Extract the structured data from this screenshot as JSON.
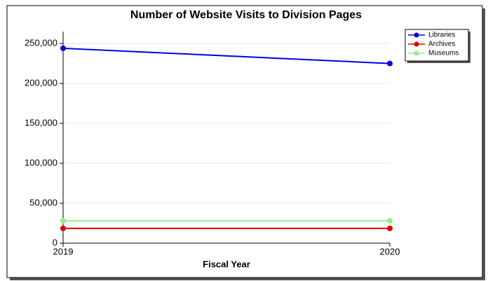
{
  "chart_data": {
    "type": "line",
    "title": "Number of Website Visits to Division Pages",
    "x_label": "Fiscal Year",
    "x": [
      2019,
      2020
    ],
    "xlim": [
      2019,
      2020
    ],
    "xticks": [
      2019,
      2020
    ],
    "ylim": [
      0,
      265000
    ],
    "yticks": [
      0,
      {
        "value": 50000,
        "label": "50,000"
      },
      {
        "value": 100000,
        "label": "100,000"
      },
      {
        "value": 150000,
        "label": "150,000"
      },
      {
        "value": 200000,
        "label": "200,000"
      },
      {
        "value": 250000,
        "label": "250,000"
      }
    ],
    "grid": true,
    "legend": "upper right",
    "series": [
      {
        "name": "Libraries",
        "color": "#0000e0",
        "values": [
          244000,
          225000
        ]
      },
      {
        "name": "Archives",
        "color": "#e00000",
        "values": [
          18500,
          18500
        ]
      },
      {
        "name": "Museums",
        "color": "#90ee90",
        "values": [
          28000,
          28000
        ]
      }
    ]
  }
}
